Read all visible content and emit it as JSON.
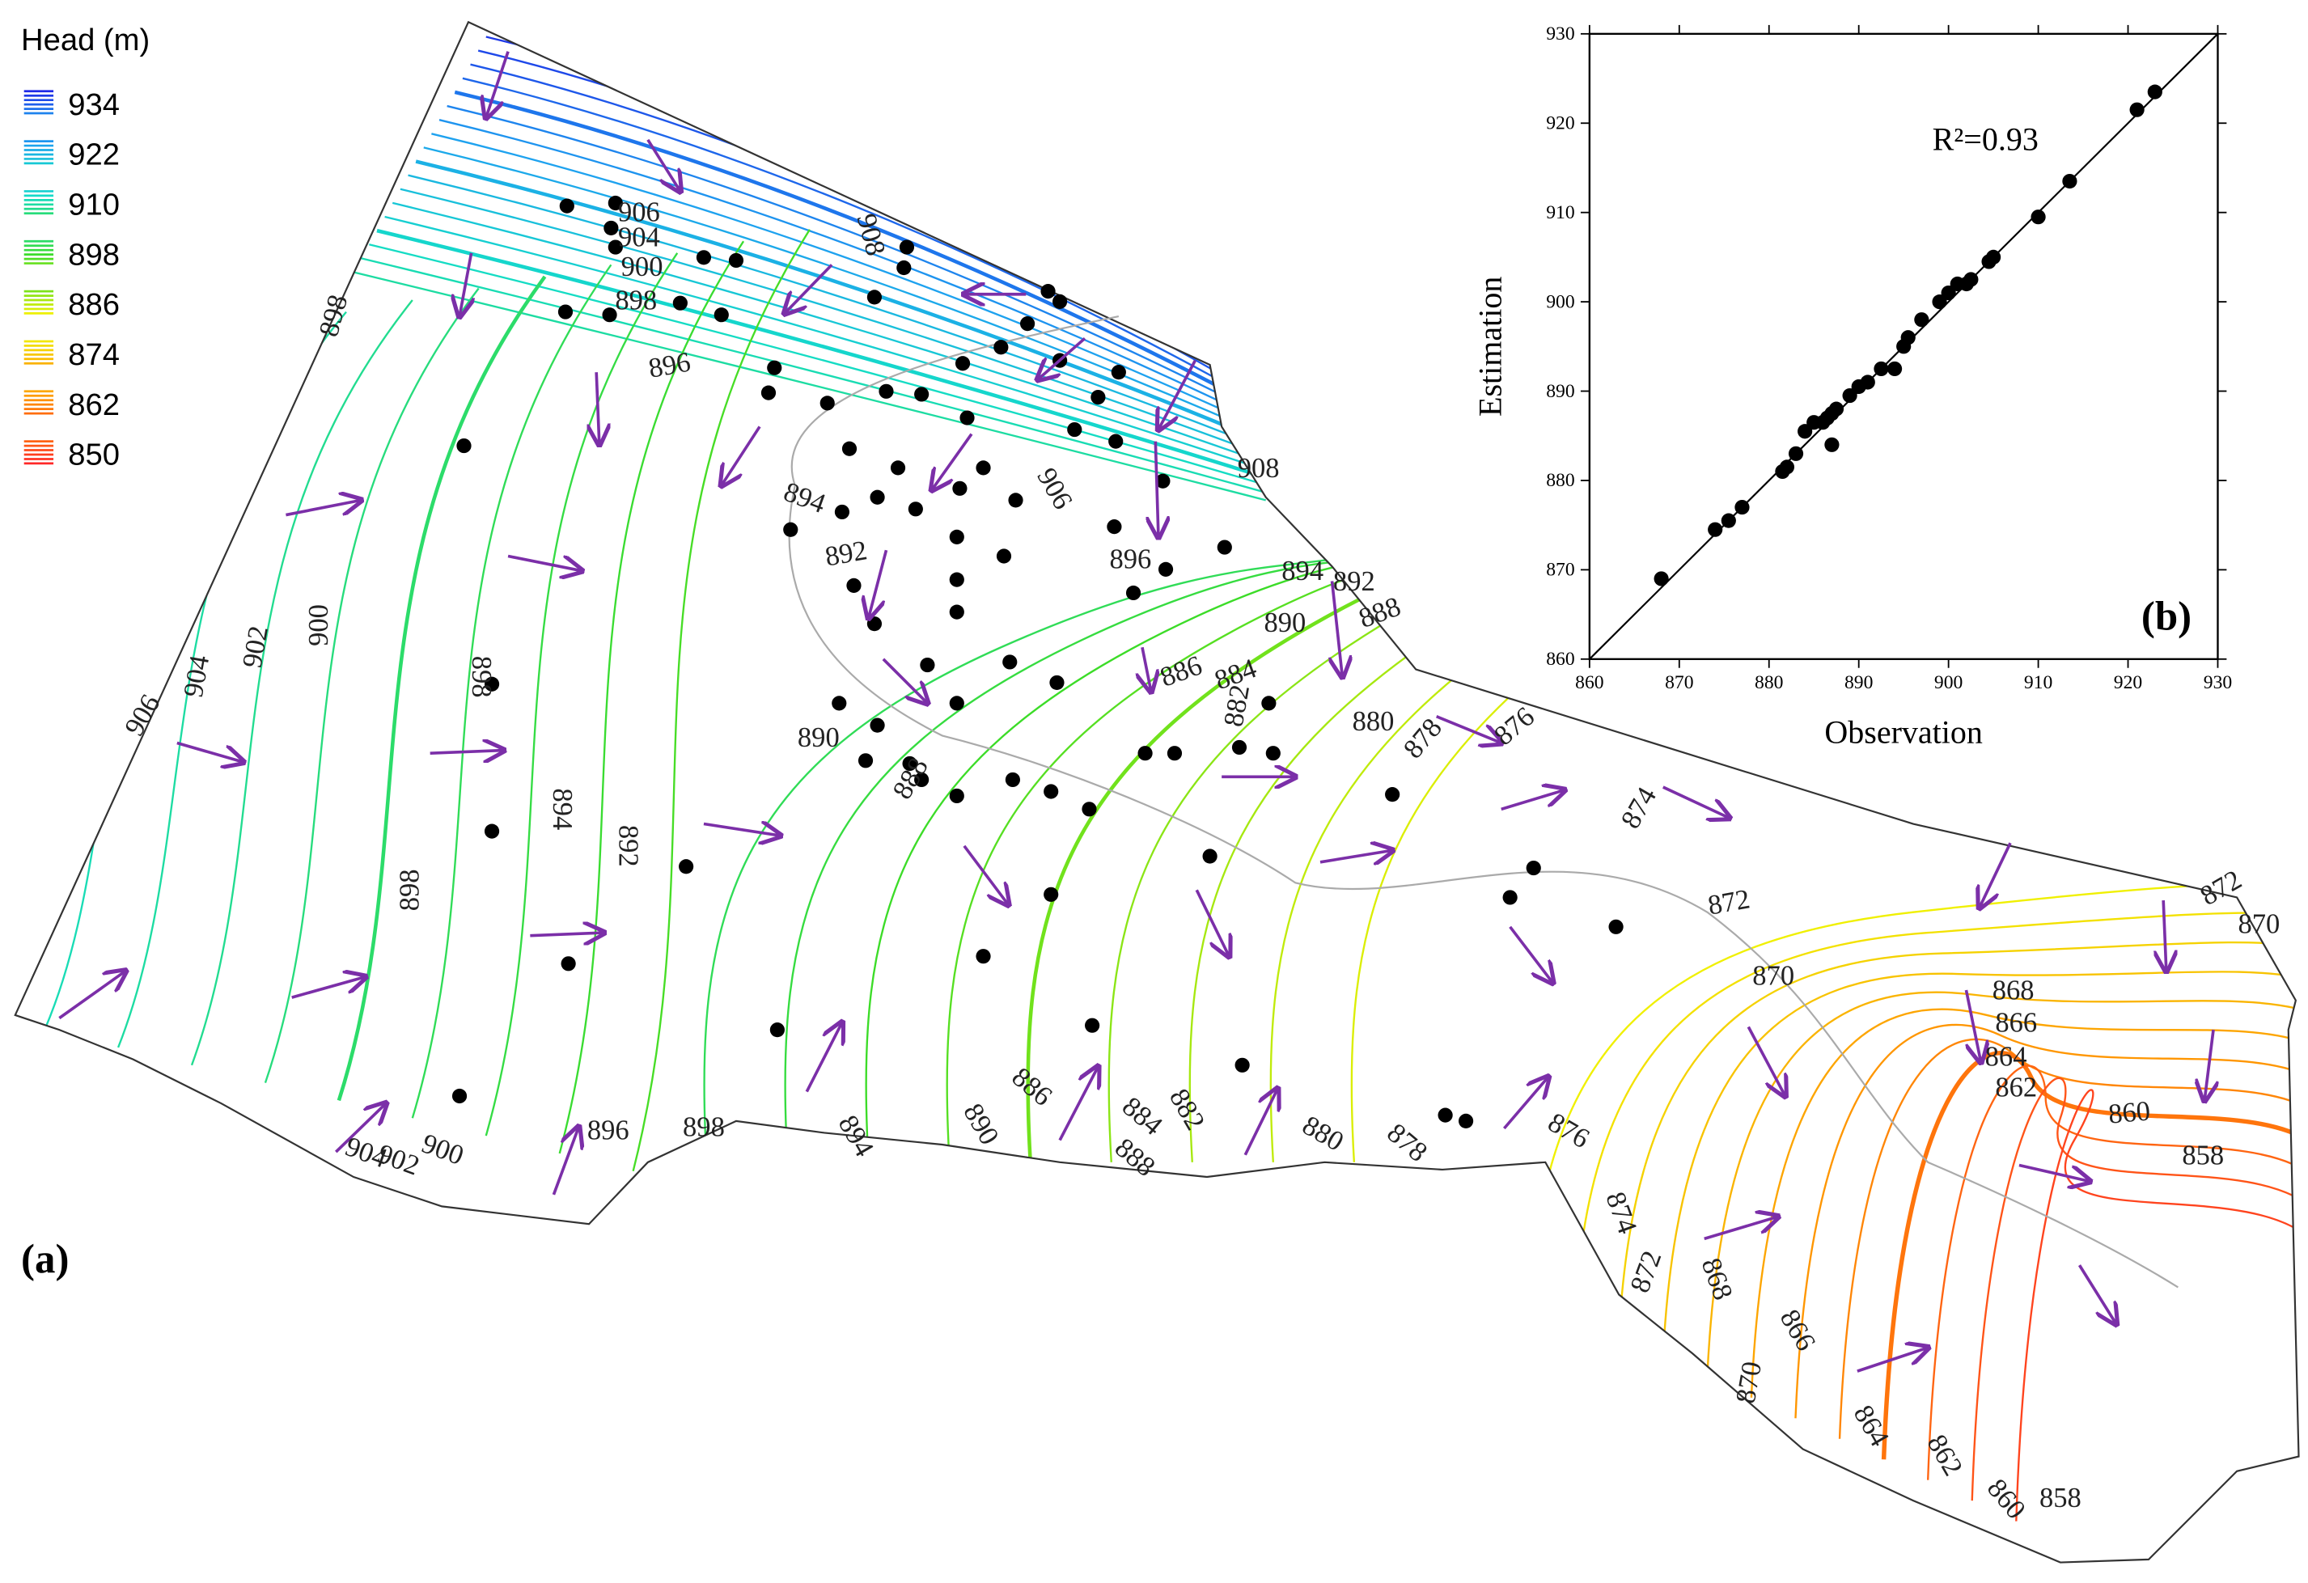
{
  "legend": {
    "title": "Head (m)",
    "labels": [
      934,
      922,
      910,
      898,
      886,
      874,
      862,
      850
    ]
  },
  "map": {
    "panel_label": "(a)",
    "contour_labels": [
      "906",
      "904",
      "900",
      "898",
      "896",
      "908",
      "898",
      "908",
      "906",
      "896",
      "894",
      "892",
      "894",
      "892",
      "890",
      "888",
      "886",
      "884",
      "882",
      "890",
      "888",
      "880",
      "878",
      "876",
      "874",
      "872",
      "870",
      "868",
      "866",
      "864",
      "862",
      "860",
      "858",
      "872",
      "870",
      "906",
      "904",
      "902",
      "900",
      "898",
      "894",
      "892",
      "898",
      "900",
      "902",
      "904",
      "896",
      "898",
      "894",
      "890",
      "886",
      "884",
      "882",
      "888",
      "880",
      "878",
      "876",
      "874",
      "872",
      "868",
      "866",
      "870",
      "864",
      "862",
      "860",
      "858"
    ]
  },
  "chart_data": {
    "type": "scatter",
    "panel_label": "(b)",
    "annotation": "R²=0.93",
    "xlabel": "Observation",
    "ylabel": "Estimation",
    "xlim": [
      860,
      930
    ],
    "ylim": [
      860,
      930
    ],
    "xticks": [
      860,
      870,
      880,
      890,
      900,
      910,
      920,
      930
    ],
    "yticks": [
      860,
      870,
      880,
      890,
      900,
      910,
      920,
      930
    ],
    "x": [
      868,
      874,
      875.5,
      877,
      881.5,
      882,
      883,
      884,
      885,
      886,
      886.5,
      887,
      887,
      887.5,
      889,
      890,
      891,
      892.5,
      894,
      895,
      895.5,
      897,
      899,
      900,
      901,
      902,
      902.5,
      904.5,
      905,
      910,
      913.5,
      921,
      923
    ],
    "series": [
      {
        "color": "#000000",
        "values": [
          869,
          874.5,
          875.5,
          877,
          881,
          881.5,
          883,
          885.5,
          886.5,
          886.5,
          887,
          887.5,
          884,
          888,
          889.5,
          890.5,
          891,
          892.5,
          892.5,
          895,
          896,
          898,
          900,
          901,
          902,
          902,
          902.5,
          904.5,
          905,
          909.5,
          913.5,
          921.5,
          923.5
        ]
      }
    ]
  }
}
